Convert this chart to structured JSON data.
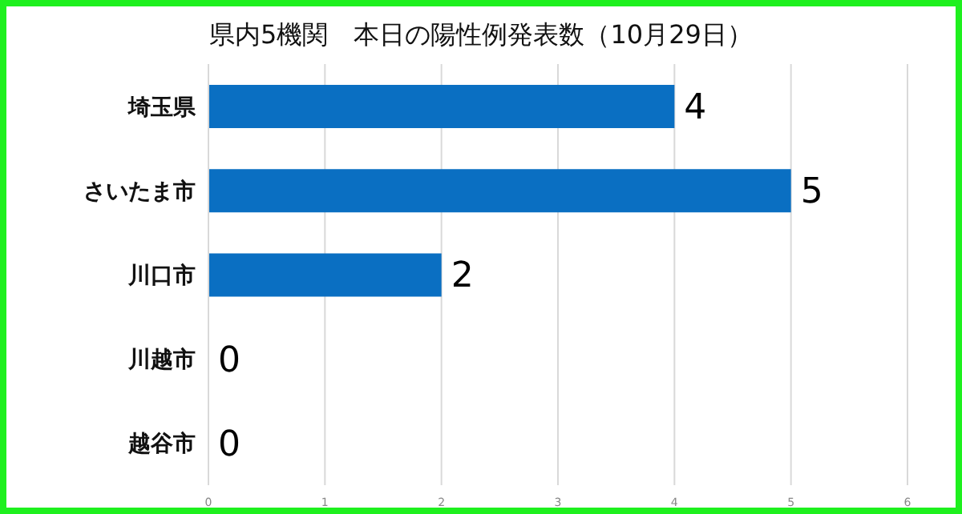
{
  "chart_data": {
    "type": "bar",
    "orientation": "horizontal",
    "title": "県内5機関　本日の陽性例発表数（10月29日）",
    "categories": [
      "埼玉県",
      "さいたま市",
      "川口市",
      "川越市",
      "越谷市"
    ],
    "values": [
      4,
      5,
      2,
      0,
      0
    ],
    "color": "#0a6fc2",
    "xlim": [
      0,
      6
    ],
    "xticks": [
      0,
      1,
      2,
      3,
      4,
      5,
      6
    ],
    "grid": "x",
    "data_labels": true
  }
}
